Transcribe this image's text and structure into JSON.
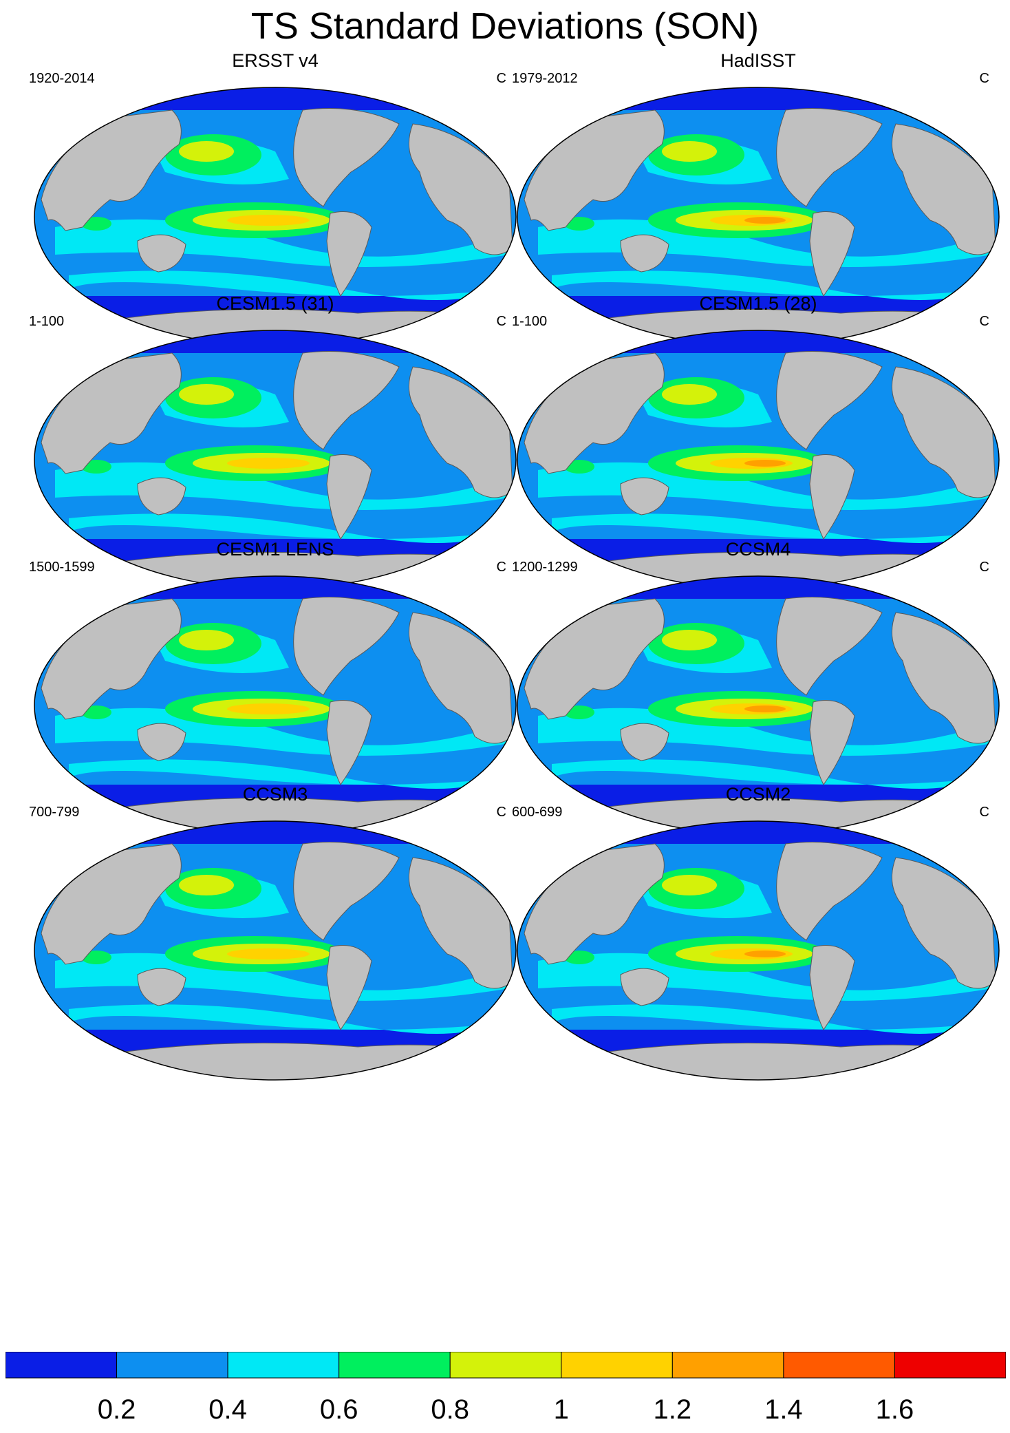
{
  "title": "TS Standard Deviations (SON)",
  "unit_label": "C",
  "panels": [
    {
      "title": "ERSST v4",
      "period": "1920-2014"
    },
    {
      "title": "HadISST",
      "period": "1979-2012"
    },
    {
      "title": "CESM1.5 (31)",
      "period": "1-100"
    },
    {
      "title": "CESM1.5 (28)",
      "period": "1-100"
    },
    {
      "title": "CESM1 LENS",
      "period": "1500-1599"
    },
    {
      "title": "CCSM4",
      "period": "1200-1299"
    },
    {
      "title": "CCSM3",
      "period": "700-799"
    },
    {
      "title": "CCSM2",
      "period": "600-699"
    }
  ],
  "colorbar": {
    "labels": [
      "0.2",
      "0.4",
      "0.6",
      "0.8",
      "1",
      "1.2",
      "1.4",
      "1.6"
    ],
    "colors": [
      "#0a1ee6",
      "#0d8ff0",
      "#00e8f5",
      "#00ef5e",
      "#d4f20a",
      "#ffd200",
      "#ffa000",
      "#ff5a00",
      "#ee0000"
    ]
  },
  "colors": {
    "land": "#c0c0c0",
    "coast": "#5a5a5a"
  }
}
